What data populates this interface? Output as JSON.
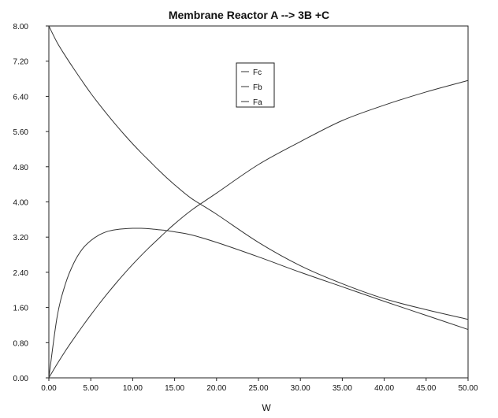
{
  "chart_data": {
    "type": "line",
    "title": "Membrane Reactor   A --> 3B +C",
    "xlabel": "W",
    "ylabel": "",
    "xlim": [
      0,
      50
    ],
    "ylim": [
      0,
      8
    ],
    "x_ticks": [
      "0.00",
      "5.00",
      "10.00",
      "15.00",
      "20.00",
      "25.00",
      "30.00",
      "35.00",
      "40.00",
      "45.00",
      "50.00"
    ],
    "y_ticks": [
      "0.00",
      "0.80",
      "1.60",
      "2.40",
      "3.20",
      "4.00",
      "4.80",
      "5.60",
      "6.40",
      "7.20",
      "8.00"
    ],
    "grid": false,
    "legend_position": "upper-center",
    "x": [
      0,
      1,
      2,
      3,
      4,
      5,
      6,
      7,
      8,
      9,
      10,
      11,
      12,
      13,
      14,
      15,
      17,
      20,
      25,
      30,
      35,
      40,
      45,
      50
    ],
    "series": [
      {
        "name": "Fc",
        "color": "#333333",
        "values": [
          0,
          0.32,
          0.62,
          0.9,
          1.17,
          1.43,
          1.68,
          1.92,
          2.15,
          2.37,
          2.58,
          2.78,
          2.97,
          3.15,
          3.33,
          3.5,
          3.81,
          4.2,
          4.85,
          5.37,
          5.85,
          6.2,
          6.5,
          6.76
        ]
      },
      {
        "name": "Fb",
        "color": "#333333",
        "values": [
          0,
          1.4,
          2.15,
          2.62,
          2.93,
          3.12,
          3.25,
          3.33,
          3.37,
          3.39,
          3.4,
          3.4,
          3.39,
          3.37,
          3.35,
          3.32,
          3.25,
          3.08,
          2.75,
          2.4,
          2.07,
          1.74,
          1.42,
          1.1
        ]
      },
      {
        "name": "Fa",
        "color": "#333333",
        "values": [
          8.0,
          7.62,
          7.31,
          7.02,
          6.74,
          6.47,
          6.22,
          5.98,
          5.75,
          5.53,
          5.32,
          5.12,
          4.93,
          4.74,
          4.56,
          4.39,
          4.08,
          3.72,
          3.08,
          2.55,
          2.14,
          1.8,
          1.55,
          1.33
        ]
      }
    ]
  }
}
